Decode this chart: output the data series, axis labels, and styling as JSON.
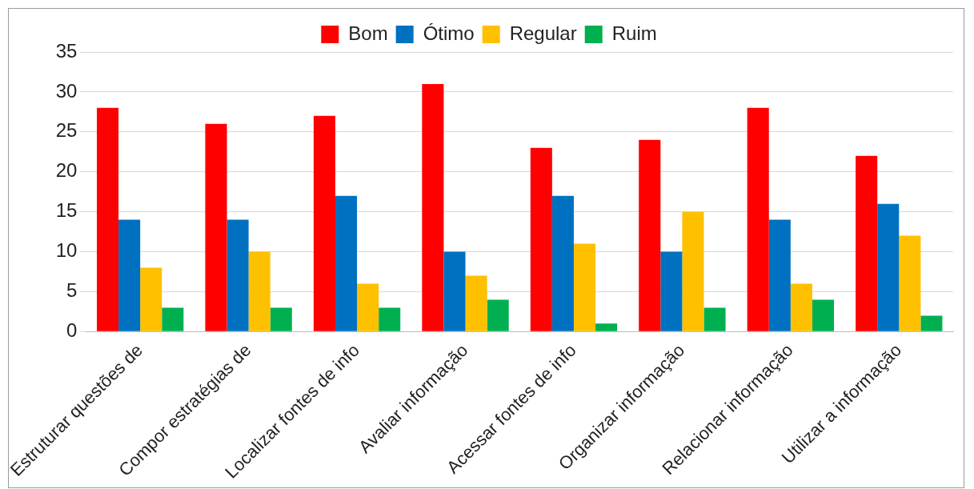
{
  "chart_data": {
    "type": "bar",
    "categories": [
      "Estruturar questões de",
      "Compor estratégias de",
      "Localizar fontes de info",
      "Avaliar informação",
      "Acessar fontes de info",
      "Organizar informação",
      "Relacionar informação",
      "Utilizar a informação"
    ],
    "series": [
      {
        "name": "Bom",
        "color": "#ff0000",
        "values": [
          28,
          26,
          27,
          31,
          23,
          24,
          28,
          22
        ]
      },
      {
        "name": "Ótimo",
        "color": "#0070c0",
        "values": [
          14,
          14,
          17,
          10,
          17,
          10,
          14,
          16
        ]
      },
      {
        "name": "Regular",
        "color": "#ffc000",
        "values": [
          8,
          10,
          6,
          7,
          11,
          15,
          6,
          12
        ]
      },
      {
        "name": "Ruim",
        "color": "#00b050",
        "values": [
          3,
          3,
          3,
          4,
          1,
          3,
          4,
          2
        ]
      }
    ],
    "ylim": [
      0,
      35
    ],
    "yticks": [
      0,
      5,
      10,
      15,
      20,
      25,
      30,
      35
    ],
    "grid": "y",
    "legend": "top"
  }
}
